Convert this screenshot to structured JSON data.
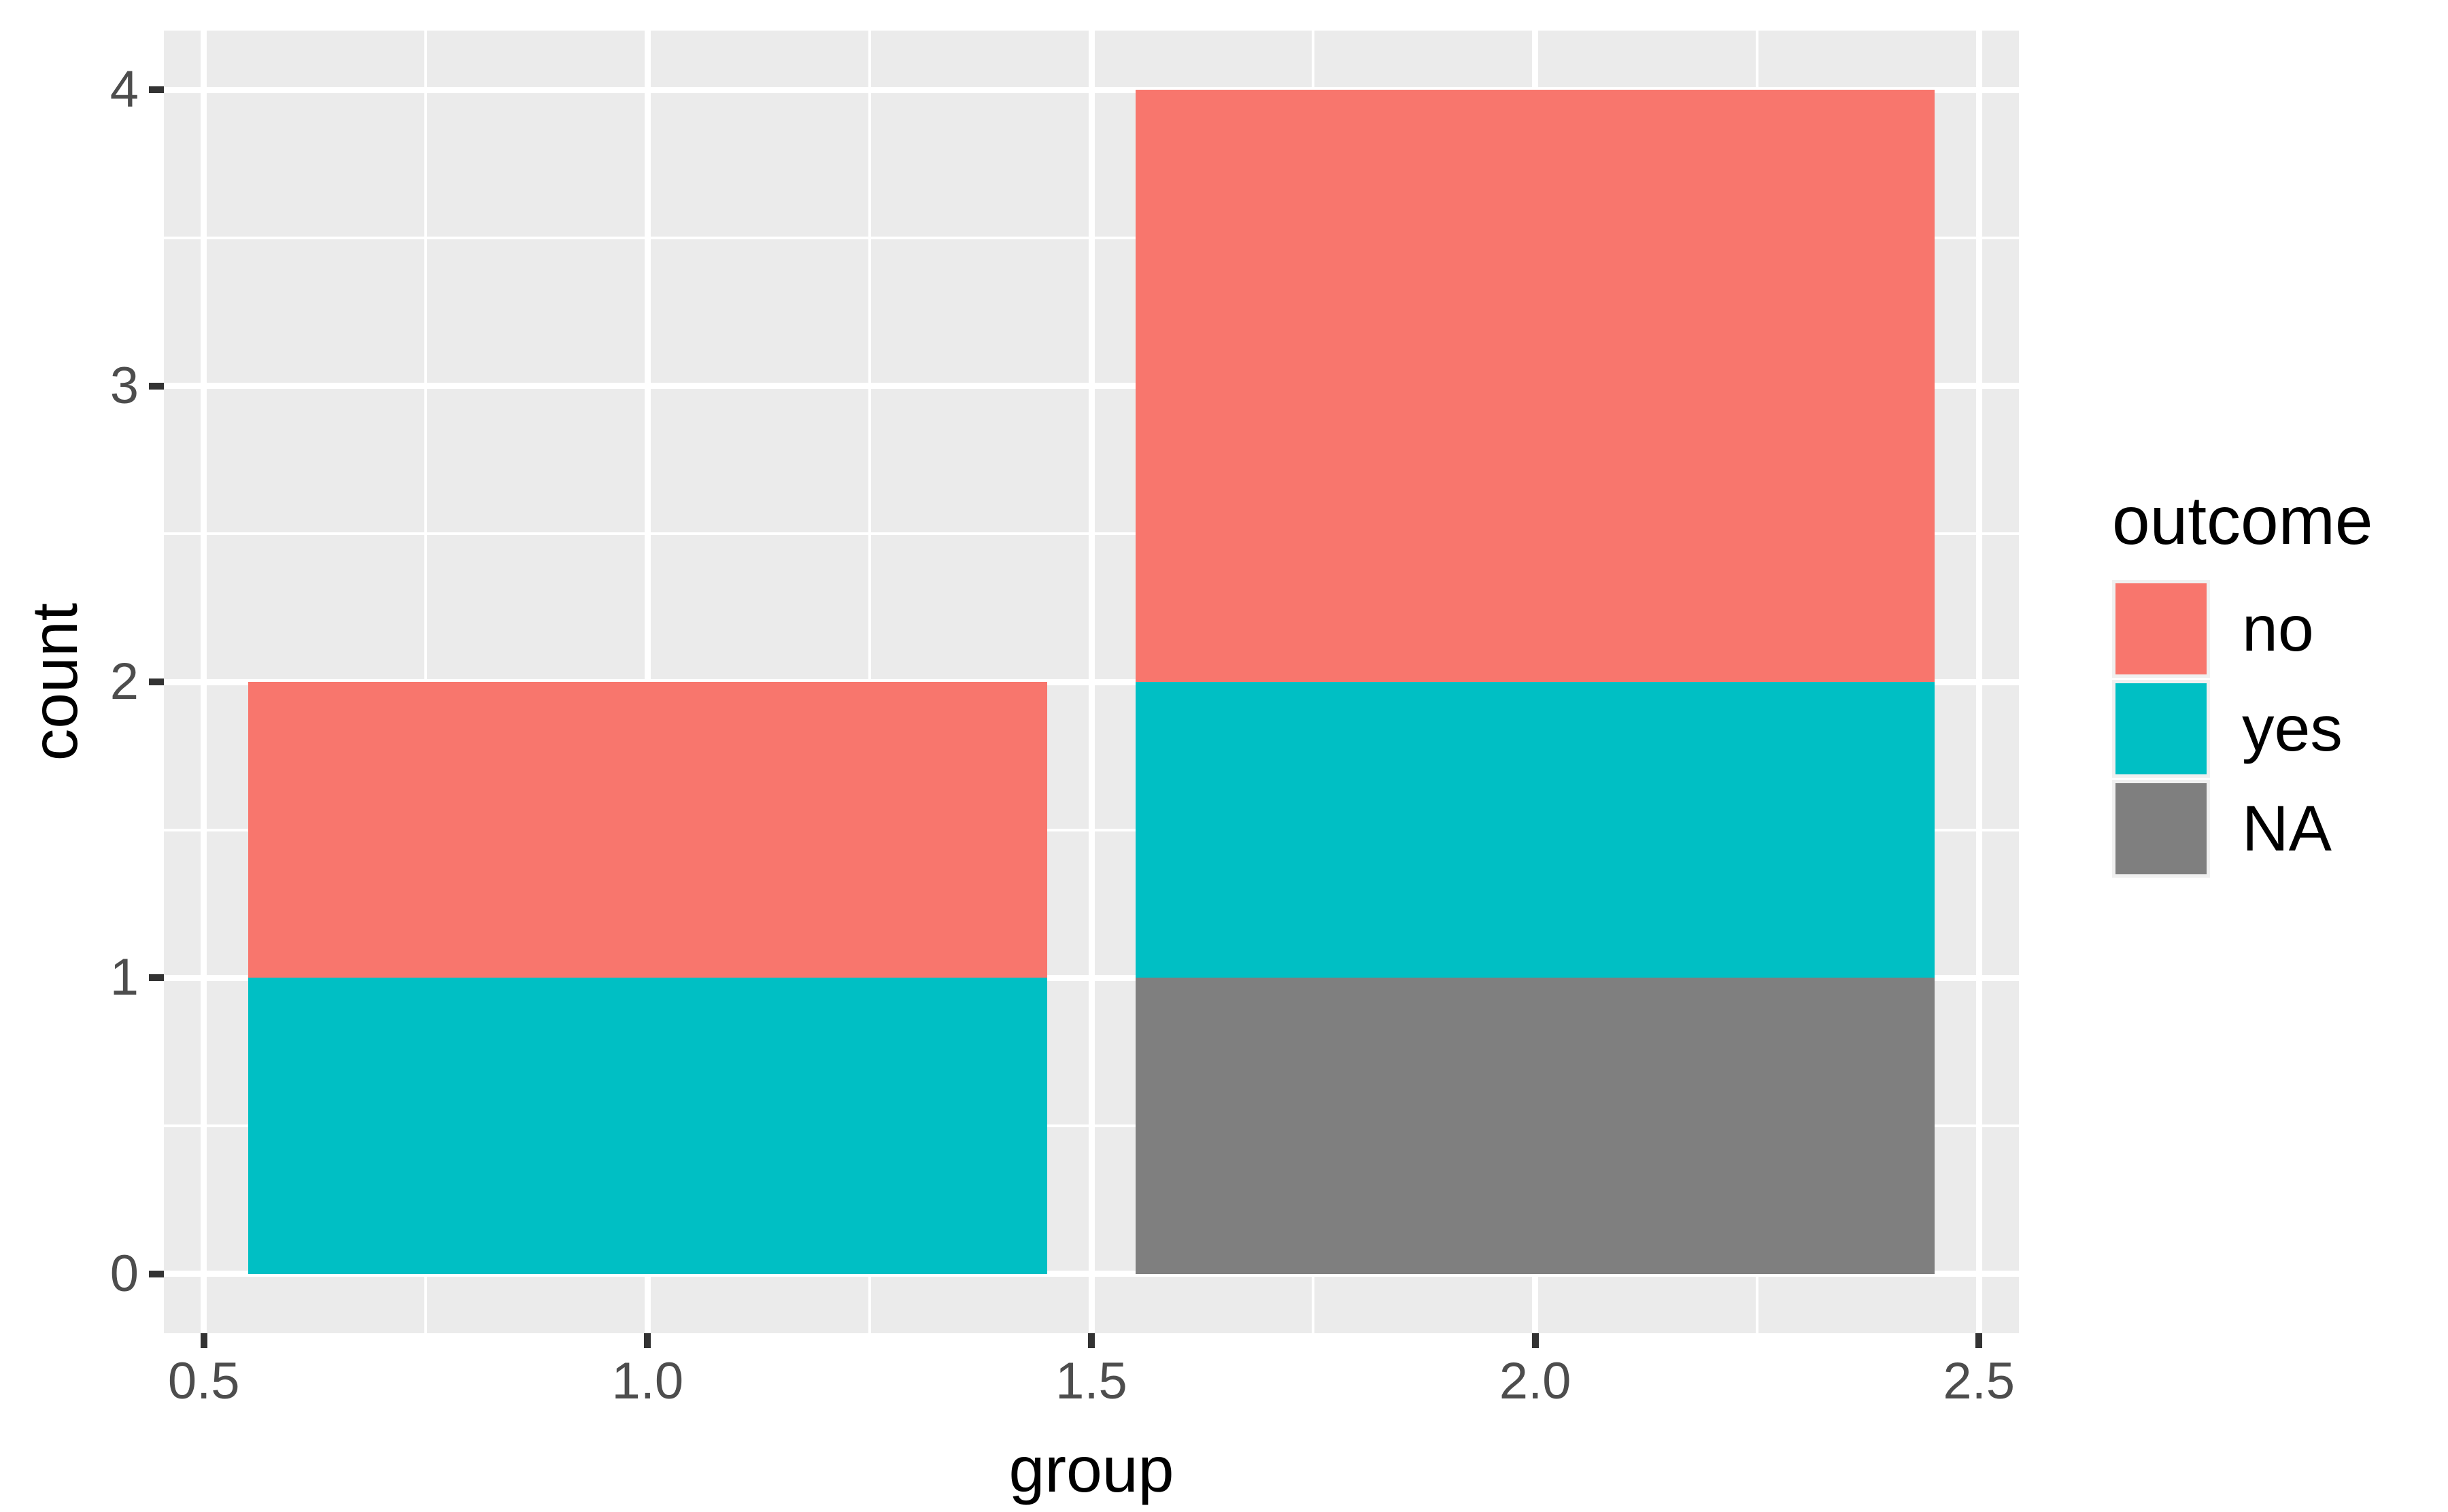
{
  "figure": {
    "background": "#FFFFFF",
    "panel_background": "#EBEBEB",
    "gridline_color": "#FFFFFF",
    "tick_mark_color": "#333333",
    "axis_text_color": "#4D4D4D",
    "title_text_color": "#000000",
    "legend_key_background": "#F0F0F0"
  },
  "chart_data": {
    "type": "bar",
    "stacked": true,
    "title": "",
    "xlabel": "group",
    "ylabel": "count",
    "categories": [
      1,
      2
    ],
    "series": [
      {
        "name": "no",
        "color": "#F8766D",
        "values": [
          1,
          2
        ]
      },
      {
        "name": "yes",
        "color": "#00BFC4",
        "values": [
          1,
          1
        ]
      },
      {
        "name": "NA",
        "color": "#7F7F7F",
        "values": [
          0,
          1
        ]
      }
    ],
    "stack_order_bottom_to_top": [
      "NA",
      "yes",
      "no"
    ],
    "bar_width": 0.9,
    "xlim": [
      0.455,
      2.545
    ],
    "ylim": [
      -0.2,
      4.2
    ],
    "x_ticks": [
      0.5,
      1.0,
      1.5,
      2.0,
      2.5
    ],
    "x_tick_labels": [
      "0.5",
      "1.0",
      "1.5",
      "2.0",
      "2.5"
    ],
    "y_ticks": [
      0,
      1,
      2,
      3,
      4
    ],
    "y_tick_labels": [
      "0",
      "1",
      "2",
      "3",
      "4"
    ],
    "x_minor_ticks": [
      0.75,
      1.25,
      1.75,
      2.25
    ],
    "y_minor_ticks": [
      0.5,
      1.5,
      2.5,
      3.5
    ],
    "grid": true,
    "legend_position": "right"
  },
  "legend": {
    "title": "outcome",
    "entries": [
      {
        "label": "no",
        "color": "#F8766D"
      },
      {
        "label": "yes",
        "color": "#00BFC4"
      },
      {
        "label": "NA",
        "color": "#7F7F7F"
      }
    ]
  }
}
